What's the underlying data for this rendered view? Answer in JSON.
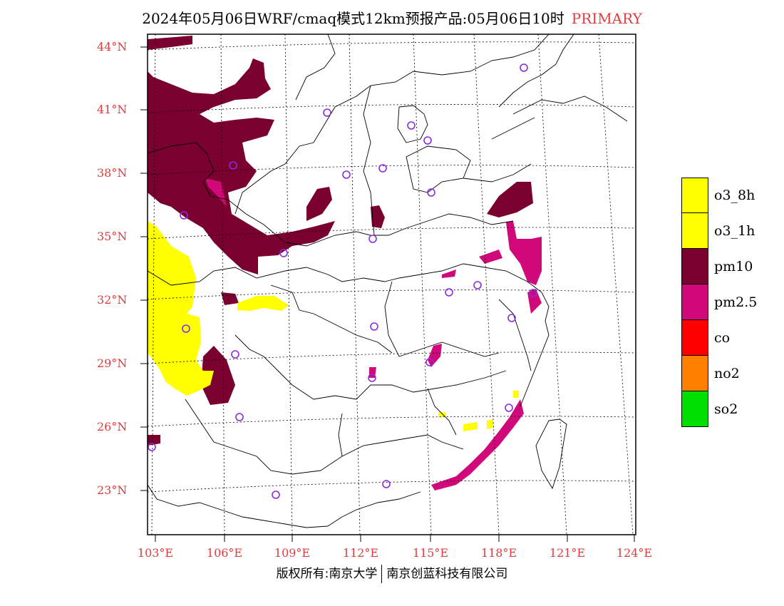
{
  "title": {
    "main": "2024年05月06日WRF/cmaq模式12km预报产品:05月06日10时",
    "tag": "PRIMARY"
  },
  "axes": {
    "lat_labels": [
      "44°N",
      "41°N",
      "38°N",
      "35°N",
      "32°N",
      "29°N",
      "26°N",
      "23°N"
    ],
    "lon_labels": [
      "103°E",
      "106°E",
      "109°E",
      "112°E",
      "115°E",
      "118°E",
      "121°E",
      "124°E"
    ]
  },
  "legend": {
    "items": [
      {
        "label": "o3_8h",
        "color": "#ffff00"
      },
      {
        "label": "o3_1h",
        "color": "#ffff00"
      },
      {
        "label": "pm10",
        "color": "#7a0030"
      },
      {
        "label": "pm2.5",
        "color": "#d0087a"
      },
      {
        "label": "co",
        "color": "#ff0000"
      },
      {
        "label": "no2",
        "color": "#ff8000"
      },
      {
        "label": "so2",
        "color": "#00e000"
      }
    ]
  },
  "colors": {
    "pm10": "#7a0030",
    "pm25": "#d0087a",
    "o3": "#ffff00",
    "station": "#8a2be2",
    "label": "#e03c3c"
  },
  "footer": {
    "left": "版权所有:南京大学",
    "right": "南京创蓝科技有限公司"
  }
}
